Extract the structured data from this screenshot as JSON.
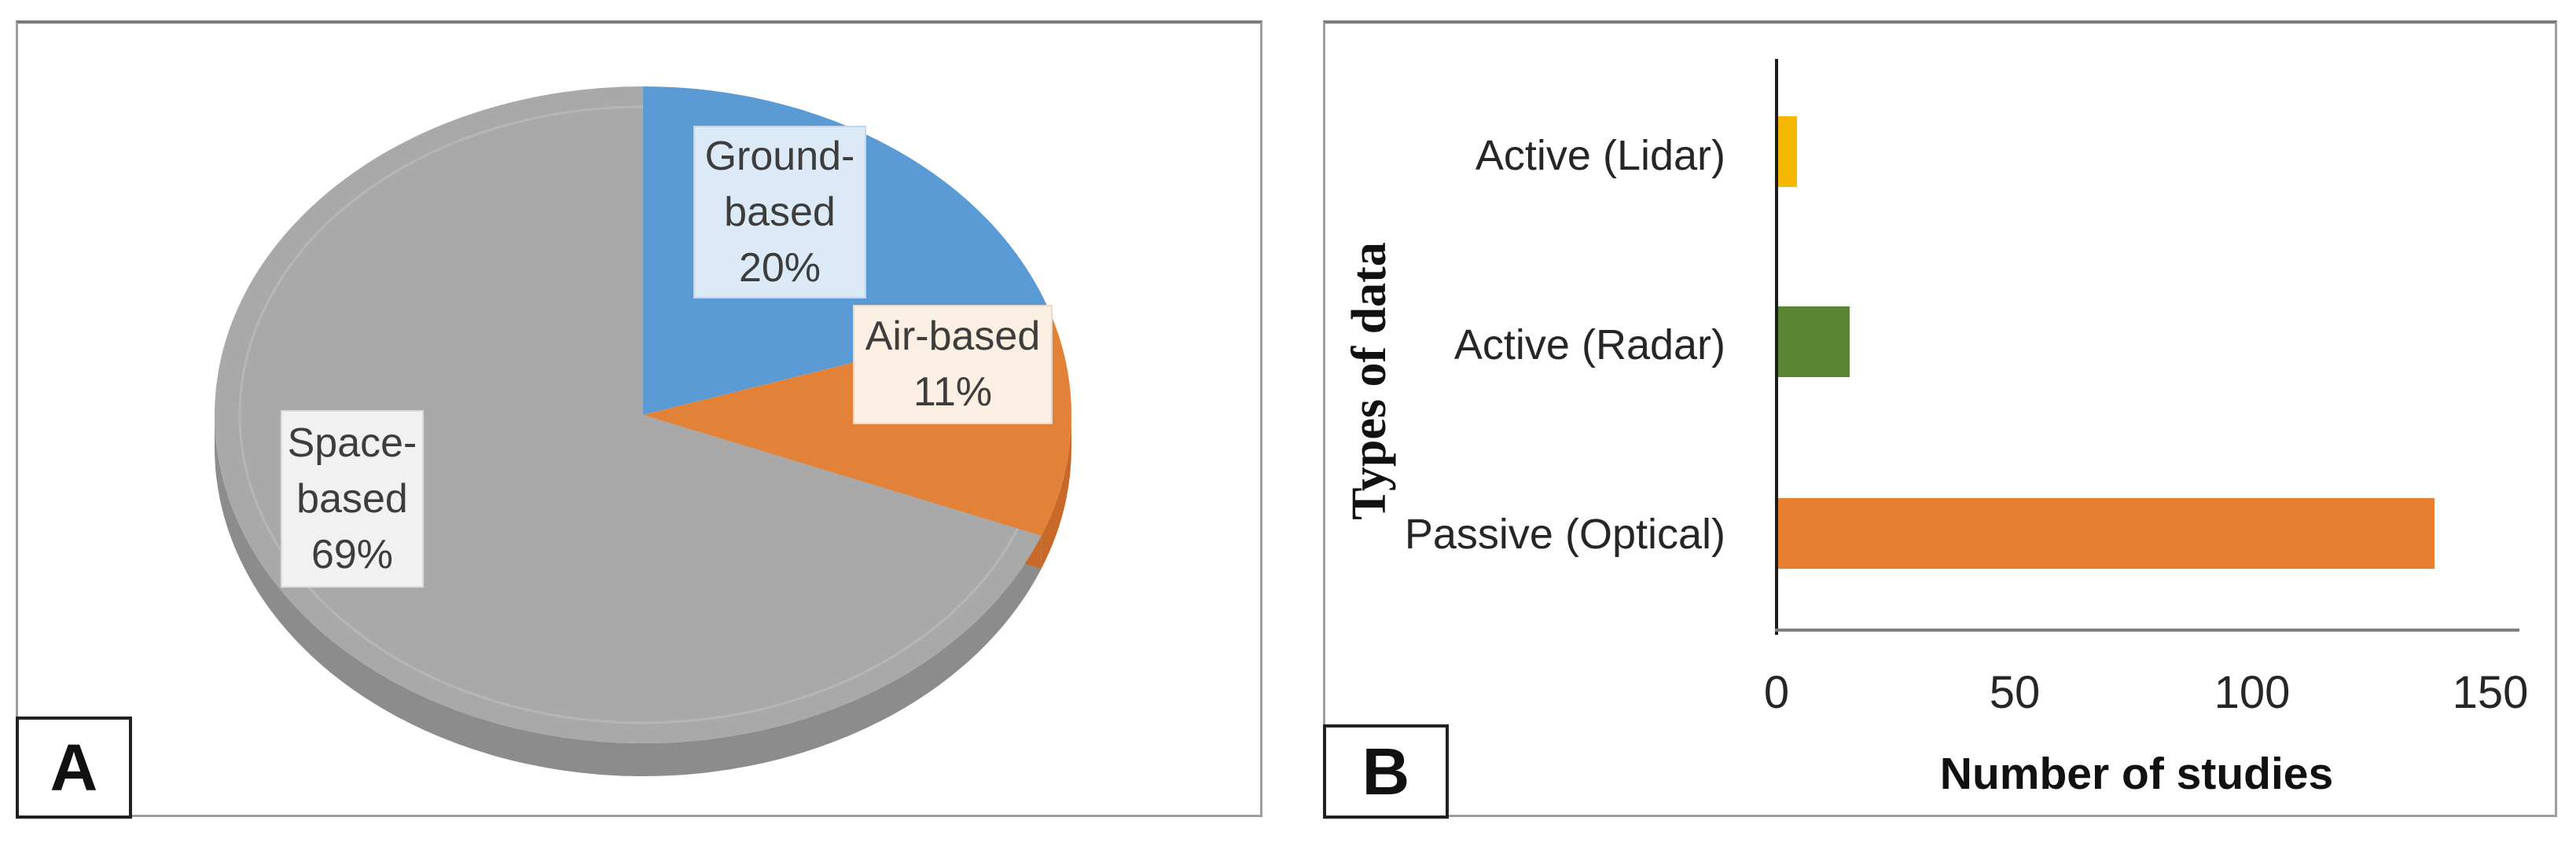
{
  "panels": {
    "a": {
      "letter": "A"
    },
    "b": {
      "letter": "B"
    }
  },
  "chart_data": [
    {
      "type": "pie",
      "panel": "A",
      "style": "3d",
      "start_angle_deg": 0,
      "direction": "clockwise",
      "slices": [
        {
          "label": "Ground-based",
          "value_pct": 20,
          "label_lines": [
            "Ground-",
            "based",
            "20%"
          ],
          "color": "#5B9BD5",
          "side_color": "#3E7CB8",
          "callout_bg": "#DCE9F7",
          "callout_border": "#C2D5EA"
        },
        {
          "label": "Air-based",
          "value_pct": 11,
          "label_lines": [
            "Air-based",
            "11%"
          ],
          "color": "#E28138",
          "side_color": "#C8692A",
          "callout_bg": "#FBEEE2",
          "callout_border": "#EBD8C6"
        },
        {
          "label": "Space-based",
          "value_pct": 69,
          "label_lines": [
            "Space-",
            "based",
            "69%"
          ],
          "color": "#A9A9A9",
          "side_color": "#8C8C8C",
          "callout_bg": "#F1F1F1",
          "callout_border": "#DBDBDB"
        }
      ]
    },
    {
      "type": "bar",
      "panel": "B",
      "orientation": "horizontal",
      "categories": [
        "Active (Lidar)",
        "Active (Radar)",
        "Passive (Optical)"
      ],
      "values": [
        4,
        15,
        138
      ],
      "bar_colors": [
        "#F5B700",
        "#588433",
        "#E87E30"
      ],
      "xlabel": "Number of studies",
      "ylabel": "Types of data",
      "xlim": [
        0,
        150
      ],
      "xticks": [
        0,
        50,
        100,
        150
      ],
      "grid": false,
      "legend_position": "none"
    }
  ]
}
